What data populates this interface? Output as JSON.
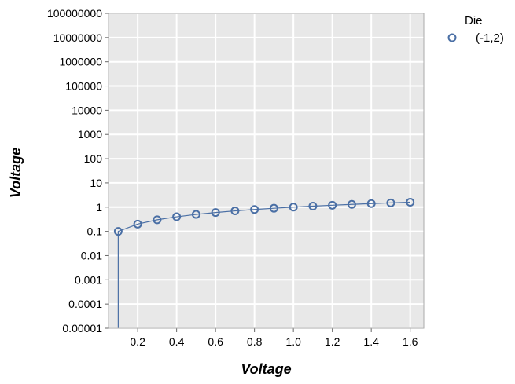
{
  "chart_data": {
    "type": "line",
    "xlabel": "Voltage",
    "ylabel": "Voltage",
    "y_scale": "log",
    "xlim": [
      0.05,
      1.67
    ],
    "ylim": [
      1e-05,
      100000000
    ],
    "x_ticks": [
      "0.2",
      "0.4",
      "0.6",
      "0.8",
      "1.0",
      "1.2",
      "1.4",
      "1.6"
    ],
    "y_ticks": [
      "0.00001",
      "0.0001",
      "0.001",
      "0.01",
      "0.1",
      "1",
      "10",
      "100",
      "1000",
      "10000",
      "100000",
      "1000000",
      "10000000",
      "100000000"
    ],
    "grid": true,
    "legend": {
      "title": "Die",
      "position": "right"
    },
    "series": [
      {
        "name": "(-1,2)",
        "color": "#4a6fa5",
        "marker": "open-circle",
        "x": [
          0.1,
          0.2,
          0.3,
          0.4,
          0.5,
          0.6,
          0.7,
          0.8,
          0.9,
          1.0,
          1.1,
          1.2,
          1.3,
          1.4,
          1.5,
          1.6
        ],
        "y": [
          0.1,
          0.2,
          0.3,
          0.4,
          0.5,
          0.6,
          0.7,
          0.8,
          0.9,
          1.0,
          1.1,
          1.2,
          1.3,
          1.4,
          1.5,
          1.6
        ]
      }
    ]
  },
  "colors": {
    "plot_background": "#e8e8e8",
    "grid": "#ffffff",
    "frame": "#aaaaaa"
  }
}
